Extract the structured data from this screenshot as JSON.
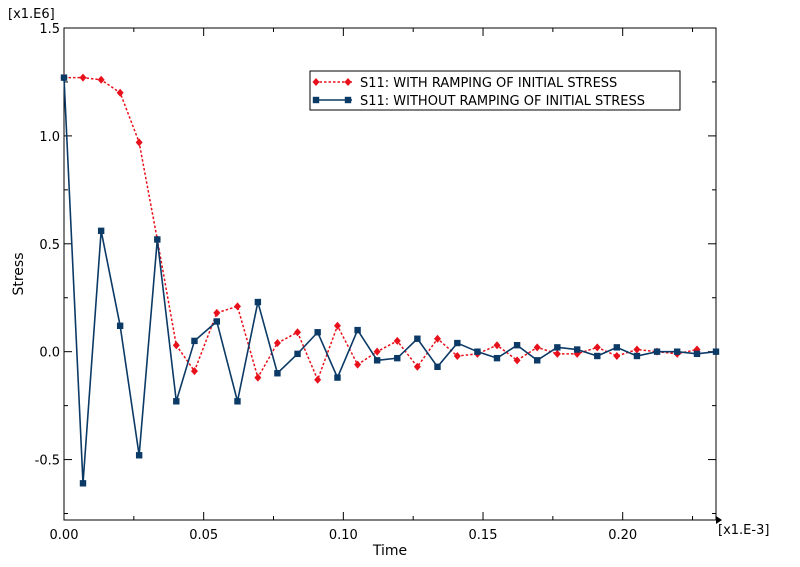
{
  "chart_data": {
    "type": "line",
    "xlabel": "Time",
    "ylabel": "Stress",
    "x_multiplier": "[x1.E-3]",
    "y_multiplier": "[x1.E6]",
    "xlim": [
      0,
      0.2334
    ],
    "ylim": [
      -0.78,
      1.5
    ],
    "x_ticks": [
      0.0,
      0.05,
      0.1,
      0.15,
      0.2
    ],
    "x_tick_labels": [
      "0.00",
      "0.05",
      "0.10",
      "0.15",
      "0.20"
    ],
    "y_ticks": [
      -0.5,
      0.0,
      0.5,
      1.0,
      1.5
    ],
    "y_tick_labels": [
      "-0.5",
      "0.0",
      "0.5",
      "1.0",
      "1.5"
    ],
    "grid": false,
    "legend_position": "top-right",
    "series": [
      {
        "name": "S11: WITH RAMPING OF INITIAL STRESS",
        "color": "#e8101a",
        "line_style": "dotted",
        "marker": "diamond",
        "x": [
          0.0,
          0.0068,
          0.0133,
          0.0201,
          0.0269,
          0.0334,
          0.0402,
          0.0467,
          0.0547,
          0.0621,
          0.0694,
          0.0764,
          0.0836,
          0.0908,
          0.0979,
          0.1051,
          0.1121,
          0.1193,
          0.1265,
          0.1337,
          0.1408,
          0.148,
          0.155,
          0.1622,
          0.1694,
          0.1766,
          0.1837,
          0.1909,
          0.1979,
          0.2051,
          0.2123,
          0.2195,
          0.2266
        ],
        "y": [
          1.27,
          1.27,
          1.26,
          1.2,
          0.97,
          0.52,
          0.03,
          -0.09,
          0.18,
          0.21,
          -0.12,
          0.04,
          0.09,
          -0.13,
          0.12,
          -0.06,
          0.0,
          0.05,
          -0.07,
          0.06,
          -0.02,
          -0.01,
          0.03,
          -0.04,
          0.02,
          -0.01,
          -0.01,
          0.02,
          -0.02,
          0.01,
          0.0,
          -0.01,
          0.01
        ]
      },
      {
        "name": "S11: WITHOUT RAMPING OF INITIAL STRESS",
        "color": "#0b3a66",
        "line_style": "solid",
        "marker": "square",
        "x": [
          0.0,
          0.0068,
          0.0133,
          0.0201,
          0.0269,
          0.0334,
          0.0402,
          0.0467,
          0.0547,
          0.0621,
          0.0694,
          0.0764,
          0.0836,
          0.0908,
          0.0979,
          0.1051,
          0.1121,
          0.1193,
          0.1265,
          0.1337,
          0.1408,
          0.148,
          0.155,
          0.1622,
          0.1694,
          0.1766,
          0.1837,
          0.1909,
          0.1979,
          0.2051,
          0.2123,
          0.2195,
          0.2266,
          0.2334
        ],
        "y": [
          1.27,
          -0.61,
          0.56,
          0.12,
          -0.48,
          0.52,
          -0.23,
          0.05,
          0.14,
          -0.23,
          0.23,
          -0.1,
          -0.01,
          0.09,
          -0.12,
          0.1,
          -0.04,
          -0.03,
          0.06,
          -0.07,
          0.04,
          0.0,
          -0.03,
          0.03,
          -0.04,
          0.02,
          0.01,
          -0.02,
          0.02,
          -0.02,
          0.0,
          0.0,
          -0.01,
          0.0
        ]
      }
    ]
  }
}
